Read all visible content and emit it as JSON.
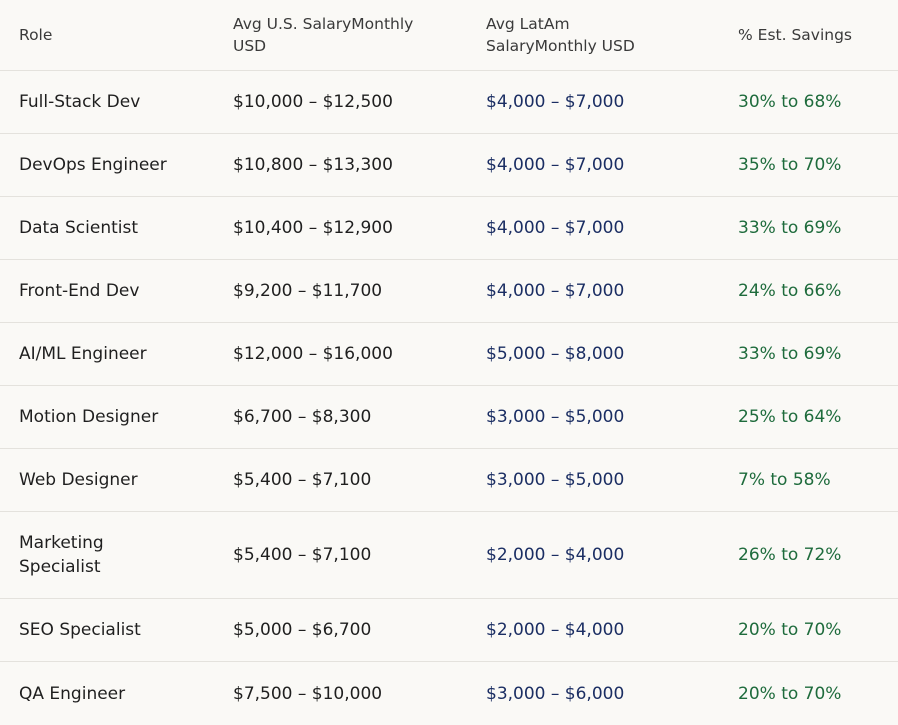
{
  "headers": {
    "role": "Role",
    "us_salary": "Avg U.S. SalaryMonthly USD",
    "latam_salary": "Avg LatAm SalaryMonthly USD",
    "savings": "% Est. Savings"
  },
  "rows": [
    {
      "role": "Full-Stack Dev",
      "us": "$10,000 – $12,500",
      "latam": "$4,000 – $7,000",
      "savings": "30% to 68%"
    },
    {
      "role": "DevOps Engineer",
      "us": "$10,800 – $13,300",
      "latam": "$4,000 – $7,000",
      "savings": "35% to 70%"
    },
    {
      "role": "Data Scientist",
      "us": "$10,400 – $12,900",
      "latam": "$4,000 – $7,000",
      "savings": "33% to 69%"
    },
    {
      "role": "Front-End Dev",
      "us": "$9,200 – $11,700",
      "latam": "$4,000 – $7,000",
      "savings": "24% to 66%"
    },
    {
      "role": "AI/ML Engineer",
      "us": "$12,000 – $16,000",
      "latam": "$5,000 – $8,000",
      "savings": "33% to 69%"
    },
    {
      "role": "Motion Designer",
      "us": "$6,700 – $8,300",
      "latam": "$3,000 – $5,000",
      "savings": "25% to 64%"
    },
    {
      "role": "Web Designer",
      "us": "$5,400 – $7,100",
      "latam": "$3,000 – $5,000",
      "savings": "7% to 58%"
    },
    {
      "role": "Marketing Specialist",
      "us": "$5,400 – $7,100",
      "latam": "$2,000 – $4,000",
      "savings": "26% to 72%"
    },
    {
      "role": "SEO Specialist",
      "us": "$5,000 – $6,700",
      "latam": "$2,000 – $4,000",
      "savings": "20% to 70%"
    },
    {
      "role": "QA Engineer",
      "us": "$7,500 – $10,000",
      "latam": "$3,000 – $6,000",
      "savings": "20% to 70%"
    }
  ]
}
